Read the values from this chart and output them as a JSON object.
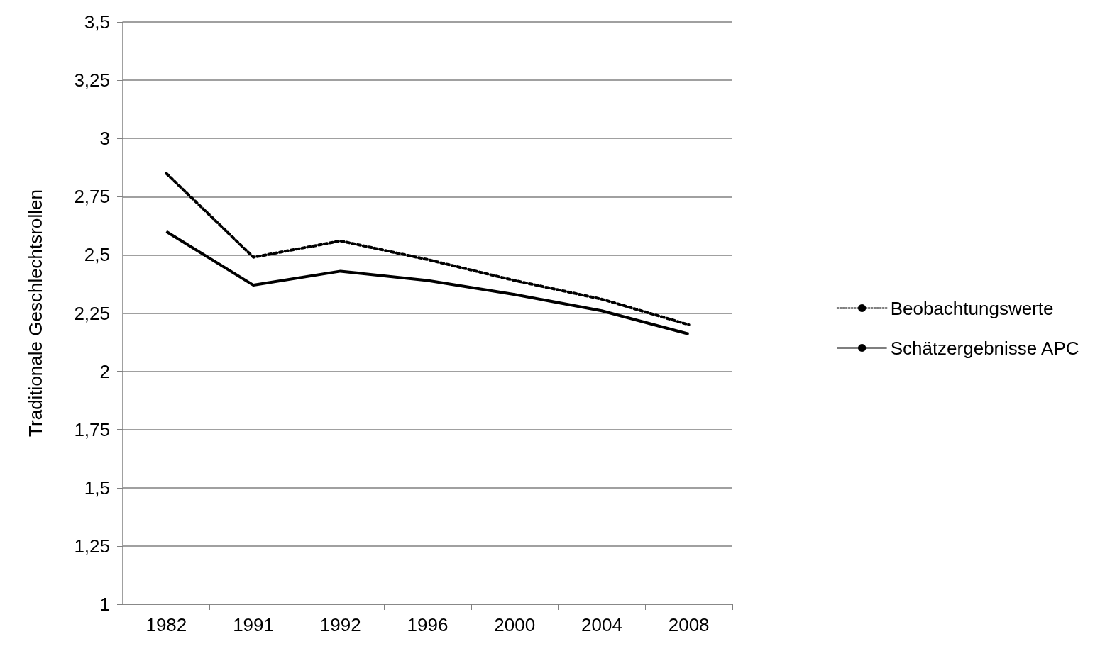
{
  "chart_data": {
    "type": "line",
    "ylabel": "Traditionale Geschlechtsrollen",
    "categories": [
      "1982",
      "1991",
      "1992",
      "1996",
      "2000",
      "2004",
      "2008"
    ],
    "series": [
      {
        "name": "Beobachtungswerte",
        "color": "#000000",
        "line_style": "dotted",
        "values": [
          2.85,
          2.49,
          2.56,
          2.48,
          2.39,
          2.31,
          2.2
        ]
      },
      {
        "name": "Schätzergebnisse APC",
        "color": "#000000",
        "line_style": "solid",
        "values": [
          2.6,
          2.37,
          2.43,
          2.39,
          2.33,
          2.26,
          2.16
        ]
      }
    ],
    "ylim": [
      1,
      3.5
    ],
    "yticks": [
      1,
      {
        "value": 1.25,
        "label": "1,25"
      },
      {
        "value": 1.5,
        "label": "1,5"
      },
      {
        "value": 1.75,
        "label": "1,75"
      },
      2,
      {
        "value": 2.25,
        "label": "2,25"
      },
      {
        "value": 2.5,
        "label": "2,5"
      },
      {
        "value": 2.75,
        "label": "2,75"
      },
      3,
      {
        "value": 3.25,
        "label": "3,25"
      },
      {
        "value": 3.5,
        "label": "3,5"
      }
    ],
    "grid": "y",
    "legend": "right",
    "marker": "none"
  }
}
